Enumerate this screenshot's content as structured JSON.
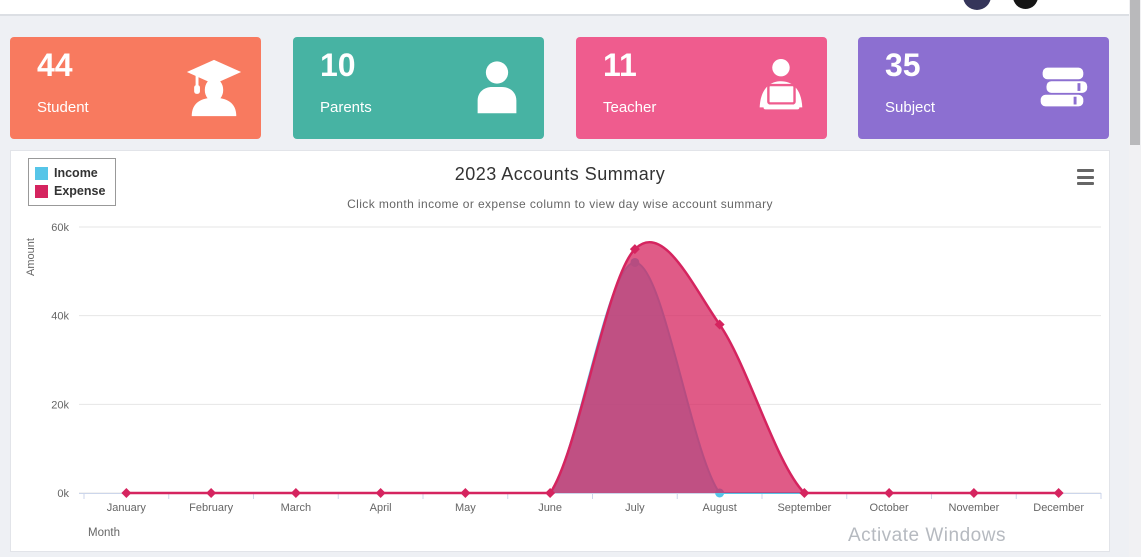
{
  "topbar": {
    "icons": [
      "user-avatar-icon",
      "dark-avatar-icon"
    ]
  },
  "stats": [
    {
      "value": "44",
      "label": "Student",
      "color": "#f87a5f",
      "icon": "graduate-icon"
    },
    {
      "value": "10",
      "label": "Parents",
      "color": "#47b3a3",
      "icon": "person-icon"
    },
    {
      "value": "11",
      "label": "Teacher",
      "color": "#ef5c8e",
      "icon": "teacher-laptop-icon"
    },
    {
      "value": "35",
      "label": "Subject",
      "color": "#8c6fd1",
      "icon": "books-stack-icon"
    }
  ],
  "chart": {
    "title": "2023 Accounts Summary",
    "subtitle": "Click month income or expense column to view day wise account summary",
    "menu_icon": "hamburger-menu-icon"
  },
  "chart_data": {
    "type": "area",
    "x": [
      "January",
      "February",
      "March",
      "April",
      "May",
      "June",
      "July",
      "August",
      "September",
      "October",
      "November",
      "December"
    ],
    "series": [
      {
        "name": "Income",
        "color": "#56c5e8",
        "marker": "circle",
        "values": [
          0,
          0,
          0,
          0,
          0,
          0,
          52000,
          0,
          0,
          0,
          0,
          0
        ]
      },
      {
        "name": "Expense",
        "color": "#d5245f",
        "marker": "diamond",
        "values": [
          0,
          0,
          0,
          0,
          0,
          0,
          55000,
          38000,
          0,
          0,
          0,
          0
        ]
      }
    ],
    "xlabel": "Month",
    "ylabel": "Amount",
    "ylim": [
      0,
      60000
    ],
    "yticks": [
      0,
      20000,
      40000,
      60000
    ],
    "ytick_labels": [
      "0k",
      "20k",
      "40k",
      "60k"
    ],
    "grid": true,
    "legend_position": "top-left",
    "fill_opacity": 0.75
  },
  "watermark": {
    "line1": "Activate Windows"
  }
}
